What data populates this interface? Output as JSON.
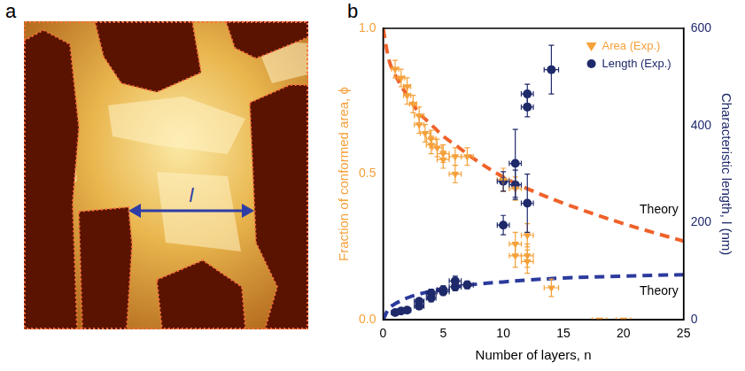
{
  "panels": [
    {
      "label": "a",
      "annotation": "l"
    },
    {
      "label": "b"
    }
  ],
  "chart_data": {
    "type": "scatter",
    "x_label": "Number of layers, n",
    "y_label": "Fraction of conformed area, ϕ",
    "y2_label": "Characteristic length, l (nm)",
    "xlim": [
      0,
      25
    ],
    "xticks": [
      0,
      5,
      10,
      15,
      20,
      25
    ],
    "ylim": [
      0,
      1
    ],
    "yticks": [
      {
        "value": 0,
        "label": "0.0"
      },
      {
        "value": 0.5,
        "label": "0.5"
      },
      {
        "value": 1,
        "label": "1.0"
      }
    ],
    "y2lim": [
      0,
      600
    ],
    "y2ticks": [
      0,
      200,
      400,
      600
    ],
    "grid": false,
    "legend": "upper right",
    "series": [
      {
        "name": "Area (Exp.)",
        "type": "scatter",
        "color": "#f5a13a",
        "marker": "triangle_down",
        "axis": "y",
        "x": [
          1,
          1.5,
          2,
          2,
          2.5,
          3,
          3,
          3.5,
          4,
          4,
          4.5,
          5,
          5,
          6,
          6,
          7,
          10,
          11,
          11,
          11,
          12,
          12,
          12,
          14,
          18,
          20
        ],
        "values": [
          0.86,
          0.83,
          0.8,
          0.77,
          0.74,
          0.7,
          0.67,
          0.64,
          0.62,
          0.6,
          0.59,
          0.57,
          0.55,
          0.56,
          0.5,
          0.56,
          0.48,
          0.45,
          0.26,
          0.22,
          0.29,
          0.22,
          0.2,
          0.11,
          0.0,
          0.0
        ],
        "x_error": [
          0.3,
          0.3,
          0.3,
          0.3,
          0.3,
          0.4,
          0.4,
          0.4,
          0.4,
          0.4,
          0.4,
          0.5,
          0.5,
          0.5,
          0.5,
          0.5,
          0.5,
          0.5,
          0.5,
          0.5,
          0.5,
          0.5,
          0.5,
          0.6,
          0.6,
          0.6
        ],
        "y_error": [
          0.03,
          0.03,
          0.03,
          0.03,
          0.03,
          0.03,
          0.03,
          0.03,
          0.03,
          0.03,
          0.03,
          0.03,
          0.03,
          0.03,
          0.03,
          0.03,
          0.04,
          0.04,
          0.04,
          0.04,
          0.04,
          0.04,
          0.04,
          0.03,
          0,
          0
        ]
      },
      {
        "name": "Length (Exp.)",
        "type": "scatter",
        "color": "#1f2a6b",
        "marker": "circle",
        "axis": "y2",
        "x": [
          1,
          1.5,
          2,
          3,
          3,
          4,
          4,
          5,
          5,
          6,
          6,
          7,
          10,
          10,
          11,
          11,
          12,
          12,
          12,
          14
        ],
        "values": [
          15,
          18,
          20,
          28,
          38,
          45,
          55,
          58,
          62,
          80,
          68,
          72,
          285,
          195,
          322,
          278,
          465,
          438,
          240,
          515
        ],
        "x_error": [
          0.3,
          0.3,
          0.3,
          0.4,
          0.4,
          0.4,
          0.4,
          0.5,
          0.5,
          0.5,
          0.5,
          0.5,
          0.5,
          0.5,
          0.5,
          0.5,
          0.5,
          0.5,
          0.5,
          0.6
        ],
        "y_error": [
          5,
          5,
          5,
          6,
          6,
          8,
          8,
          8,
          8,
          10,
          8,
          8,
          20,
          20,
          70,
          30,
          20,
          20,
          60,
          50
        ]
      },
      {
        "label": "Theory",
        "type": "line",
        "color": "#f0622a",
        "line_style": "dashed",
        "axis": "y",
        "x": [
          0,
          0.5,
          1,
          2,
          3,
          4,
          5,
          6,
          8,
          10,
          12,
          15,
          20,
          25
        ],
        "values": [
          1.0,
          0.89,
          0.84,
          0.77,
          0.71,
          0.67,
          0.63,
          0.6,
          0.54,
          0.49,
          0.45,
          0.4,
          0.33,
          0.27
        ]
      },
      {
        "label": "Theory",
        "type": "line",
        "color": "#2b3a9c",
        "line_style": "dashed",
        "axis": "y2",
        "x": [
          0,
          0.5,
          1,
          2,
          3,
          4,
          5,
          6,
          8,
          10,
          12,
          15,
          20,
          25
        ],
        "values": [
          0,
          24,
          33,
          45,
          53,
          59,
          64,
          68,
          74,
          78,
          82,
          86,
          90,
          93
        ]
      }
    ]
  }
}
